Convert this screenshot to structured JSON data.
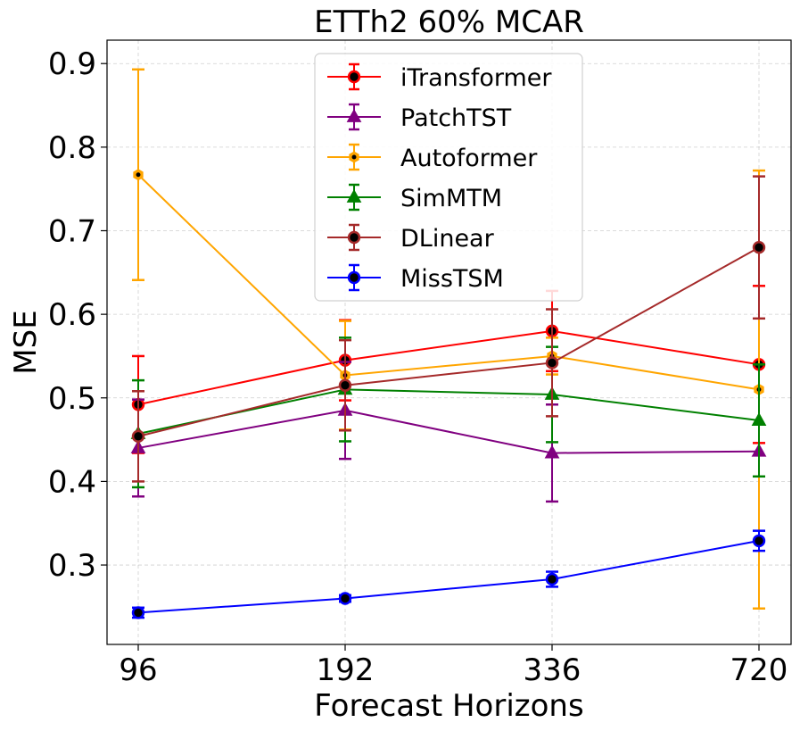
{
  "chart_data": {
    "type": "line",
    "title": "ETTh2 60% MCAR",
    "xlabel": "Forecast Horizons",
    "ylabel": "MSE",
    "categories": [
      "96",
      "192",
      "336",
      "720"
    ],
    "ylim": [
      0.205,
      0.928
    ],
    "yticks": [
      0.3,
      0.4,
      0.5,
      0.6,
      0.7,
      0.8,
      0.9
    ],
    "ytick_labels": [
      "0.3",
      "0.4",
      "0.5",
      "0.6",
      "0.7",
      "0.8",
      "0.9"
    ],
    "grid": true,
    "legend_position": "top-center",
    "series": [
      {
        "name": "iTransformer",
        "color": "#ff0000",
        "marker": "circle",
        "marker_face": "#000000",
        "values": [
          0.492,
          0.545,
          0.58,
          0.54
        ],
        "errors": [
          0.058,
          0.048,
          0.048,
          0.094
        ]
      },
      {
        "name": "PatchTST",
        "color": "#800080",
        "marker": "triangle",
        "marker_face": "#800080",
        "values": [
          0.44,
          0.485,
          0.434,
          0.436
        ],
        "errors": [
          0.058,
          0.058,
          0.058,
          0.0
        ]
      },
      {
        "name": "Autoformer",
        "color": "#ffa500",
        "marker": "hexagon",
        "marker_face": "#000000",
        "values": [
          0.767,
          0.527,
          0.55,
          0.51
        ],
        "errors": [
          0.126,
          0.065,
          0.022,
          0.262
        ]
      },
      {
        "name": "SimMTM",
        "color": "#008000",
        "marker": "triangle",
        "marker_face": "#008000",
        "values": [
          0.457,
          0.51,
          0.504,
          0.473
        ],
        "errors": [
          0.064,
          0.062,
          0.057,
          0.067
        ]
      },
      {
        "name": "DLinear",
        "color": "#a52a2a",
        "marker": "circle",
        "marker_face": "#000000",
        "values": [
          0.454,
          0.515,
          0.542,
          0.68
        ],
        "errors": [
          0.054,
          0.054,
          0.064,
          0.085
        ]
      },
      {
        "name": "MissTSM",
        "color": "#0000ff",
        "marker": "circle",
        "marker_face": "#000000",
        "values": [
          0.243,
          0.26,
          0.283,
          0.329
        ],
        "errors": [
          0.006,
          0.004,
          0.009,
          0.012
        ]
      }
    ]
  }
}
